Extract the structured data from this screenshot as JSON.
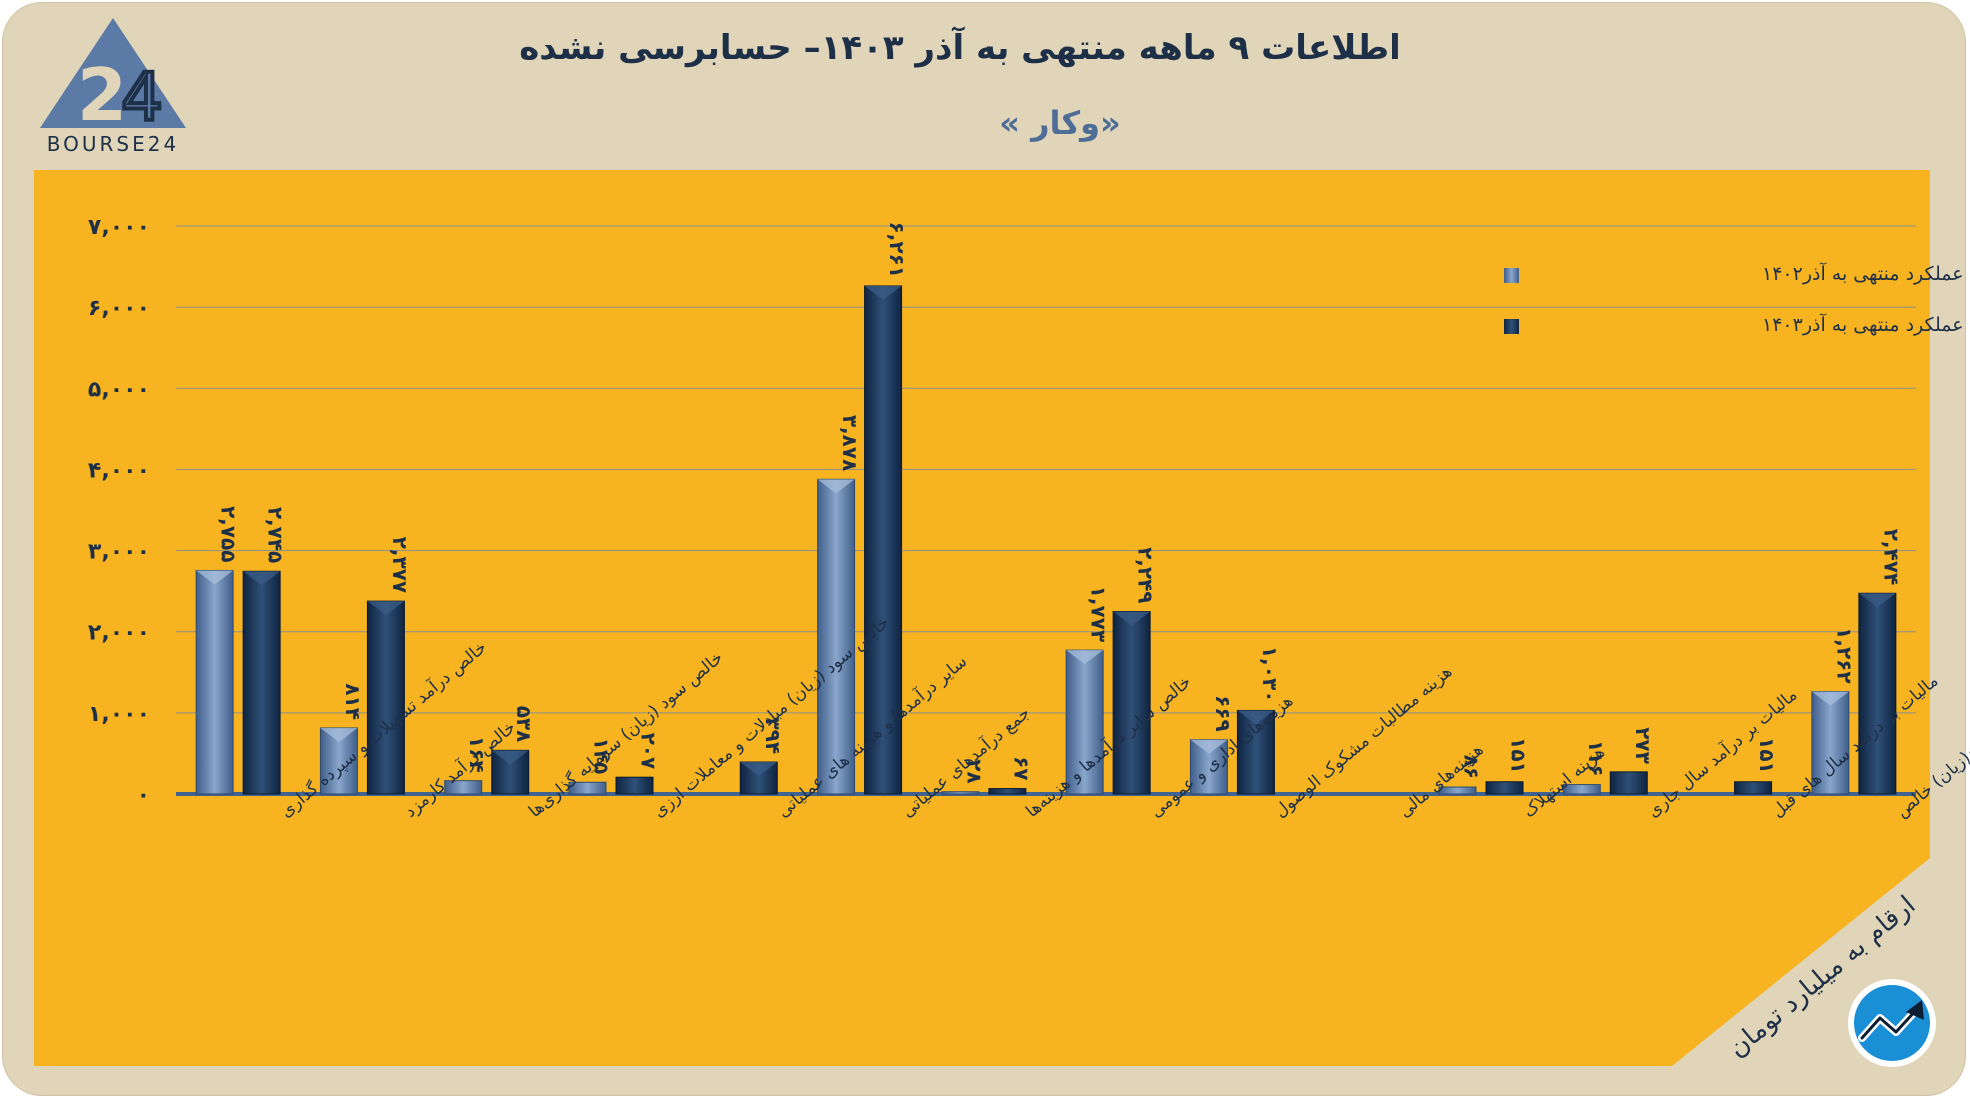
{
  "header": {
    "title": "اطلاعات ۹ ماهه منتهی به آذر ۱۴۰۳– حسابرسی نشده",
    "subtitle": "«وکار »"
  },
  "logo": {
    "text": "BOURSE24",
    "icon": "bourse24-triangle-logo"
  },
  "units_note": "ارقام به میلیارد تومان",
  "corner_icon": "trend-arrow-circle-icon",
  "colors": {
    "card": "#e0d5b8",
    "panel": "#f7b420",
    "series_1402": "#5b7aa6",
    "series_1403": "#17304f",
    "text": "#1e3048"
  },
  "chart_data": {
    "type": "bar",
    "ylim": [
      0,
      7000
    ],
    "yticks": [
      0,
      1000,
      2000,
      3000,
      4000,
      5000,
      6000,
      7000
    ],
    "ytick_labels": [
      "۰",
      "۱,۰۰۰",
      "۲,۰۰۰",
      "۳,۰۰۰",
      "۴,۰۰۰",
      "۵,۰۰۰",
      "۶,۰۰۰",
      "۷,۰۰۰"
    ],
    "grid": true,
    "legend_position": "top-right",
    "categories": [
      "خالص درآمد تسهیلات و سپرده گذاری",
      "خالص درآمد کارمزد",
      "خالص سود (زیان) سرمایه گذاری‌ها",
      "خالص سود (زیان) مبادلات و معاملات ارزی",
      "سایر درآمدها و هزینه های عملیاتی",
      "جمع درآمدهای عملیاتی",
      "خالص سایر درآمدها و هزینه‌ها",
      "هزینه‌های اداری و عمومی",
      "هزینه مطالبات مشکوک الوصول",
      "هزینه‌های مالی",
      "هزینه استهلاک",
      "مالیات بر درآمد سال جاری",
      "مالیات بر درآمد سال های قبل",
      "سود(زیان) خالص"
    ],
    "series": [
      {
        "name": "عملکرد منتهی به آذر۱۴۰۲",
        "values": [
          2755,
          814,
          164,
          145,
          null,
          3878,
          28,
          1773,
          669,
          null,
          86,
          116,
          null,
          1262
        ],
        "labels": [
          "۲,۷۵۵",
          "۸۱۴",
          "۱۶۴",
          "۱۴۵",
          "",
          "۳,۸۷۸",
          "۲۸",
          "۱,۷۷۳",
          "۶۶۹",
          "",
          "۸۶",
          "۱۱۶",
          "",
          "۱,۲۶۲"
        ]
      },
      {
        "name": "عملکرد منتهی به آذر۱۴۰۳",
        "values": [
          2745,
          2377,
          538,
          207,
          394,
          6261,
          67,
          2249,
          1030,
          null,
          151,
          273,
          151,
          2474
        ],
        "labels": [
          "۲,۷۴۵",
          "۲,۳۷۷",
          "۵۳۸",
          "۲۰۷",
          "۳۹۴",
          "۶,۲۶۱",
          "۶۷",
          "۲,۲۴۹",
          "۱,۰۳۰",
          "",
          "۱۵۱",
          "۲۷۳",
          "۱۵۱",
          "۲,۴۷۴"
        ]
      }
    ]
  }
}
